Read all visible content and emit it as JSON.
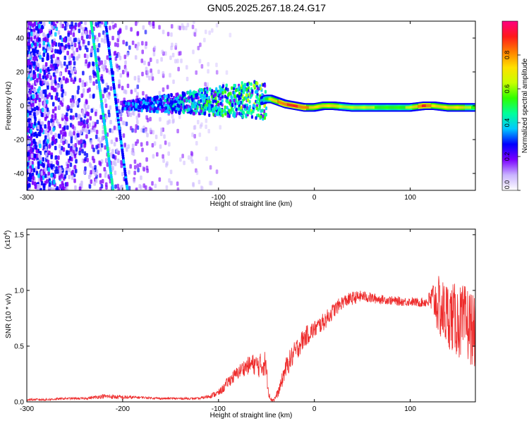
{
  "title": "GN05.2025.267.18.24.G17",
  "chart_data": [
    {
      "type": "heatmap",
      "xlabel": "Height of straight line (km)",
      "ylabel": "Frequency (Hz)",
      "xlim": [
        -300,
        168
      ],
      "ylim": [
        -50,
        50
      ],
      "xticks": [
        -300,
        -200,
        -100,
        0,
        100
      ],
      "yticks": [
        -40,
        -20,
        0,
        20,
        40
      ],
      "grid": false,
      "colorbar": {
        "label": "Normalized spectral amplitude",
        "range": [
          0,
          1
        ],
        "ticks": [
          "0.0",
          "0.2",
          "0.4",
          "0.6",
          "0.8"
        ],
        "colors": [
          "#ffffff",
          "#c9b3ff",
          "#7a00ff",
          "#0000ff",
          "#00c8ff",
          "#00ff9a",
          "#30ff00",
          "#c8ff00",
          "#ffe000",
          "#ff8000",
          "#ff1a1a",
          "#ff0080"
        ]
      },
      "tone_track": [
        {
          "x": -55,
          "y": 3,
          "value": 0.35
        },
        {
          "x": -50,
          "y": 4,
          "value": 0.5
        },
        {
          "x": -45,
          "y": 4,
          "value": 0.65
        },
        {
          "x": -40,
          "y": 3,
          "value": 0.75
        },
        {
          "x": -30,
          "y": 1,
          "value": 0.85
        },
        {
          "x": -20,
          "y": 0,
          "value": 0.9
        },
        {
          "x": -10,
          "y": -1,
          "value": 0.8
        },
        {
          "x": 0,
          "y": -1,
          "value": 0.75
        },
        {
          "x": 10,
          "y": 0,
          "value": 0.75
        },
        {
          "x": 20,
          "y": 0,
          "value": 0.7
        },
        {
          "x": 40,
          "y": -1,
          "value": 0.6
        },
        {
          "x": 60,
          "y": -1,
          "value": 0.6
        },
        {
          "x": 80,
          "y": -1,
          "value": 0.55
        },
        {
          "x": 100,
          "y": -1,
          "value": 0.6
        },
        {
          "x": 115,
          "y": 0,
          "value": 0.9
        },
        {
          "x": 125,
          "y": 0,
          "value": 0.75
        },
        {
          "x": 140,
          "y": -1,
          "value": 0.7
        },
        {
          "x": 155,
          "y": -1,
          "value": 0.7
        },
        {
          "x": 168,
          "y": -1,
          "value": 0.55
        }
      ],
      "streaks": [
        {
          "from": [
            -233,
            50
          ],
          "to": [
            -210,
            -50
          ],
          "value": 0.4
        },
        {
          "from": [
            -218,
            50
          ],
          "to": [
            -195,
            -50
          ],
          "value": 0.3
        }
      ]
    },
    {
      "type": "line",
      "xlabel": "Height of straight line (km)",
      "ylabel": "SNR (10 * v/v)",
      "yscale_label": "(x10",
      "yscale_exp": "4",
      "yscale_close": ")",
      "xlim": [
        -300,
        168
      ],
      "ylim": [
        0,
        1.55
      ],
      "xticks": [
        -300,
        -200,
        -100,
        0,
        100
      ],
      "yticks": [
        "0.0",
        "0.5",
        "1.0",
        "1.5"
      ],
      "grid": false,
      "series": [
        {
          "color": "#ee2c2c",
          "x": [
            -300,
            -280,
            -260,
            -240,
            -220,
            -200,
            -180,
            -160,
            -140,
            -120,
            -110,
            -100,
            -95,
            -90,
            -85,
            -80,
            -75,
            -70,
            -65,
            -60,
            -55,
            -52,
            -50,
            -48,
            -45,
            -42,
            -40,
            -38,
            -35,
            -32,
            -30,
            -25,
            -20,
            -15,
            -10,
            -5,
            0,
            10,
            20,
            30,
            40,
            50,
            60,
            70,
            80,
            90,
            100,
            110,
            118,
            125,
            130,
            135,
            140,
            145,
            150,
            155,
            160,
            165,
            168
          ],
          "y": [
            0.02,
            0.02,
            0.03,
            0.03,
            0.05,
            0.04,
            0.04,
            0.03,
            0.03,
            0.03,
            0.05,
            0.08,
            0.12,
            0.18,
            0.22,
            0.26,
            0.3,
            0.32,
            0.34,
            0.33,
            0.32,
            0.36,
            0.28,
            0.1,
            0.02,
            0.02,
            0.05,
            0.08,
            0.15,
            0.25,
            0.3,
            0.38,
            0.45,
            0.52,
            0.58,
            0.62,
            0.65,
            0.72,
            0.82,
            0.9,
            0.93,
            0.95,
            0.93,
            0.92,
            0.91,
            0.9,
            0.9,
            0.89,
            0.9,
            0.92,
            0.85,
            0.8,
            0.78,
            0.75,
            0.72,
            0.7,
            0.7,
            0.65,
            0.6
          ],
          "noise_amplitude": [
            0.01,
            0.01,
            0.01,
            0.01,
            0.02,
            0.02,
            0.01,
            0.01,
            0.01,
            0.01,
            0.02,
            0.03,
            0.04,
            0.05,
            0.06,
            0.06,
            0.07,
            0.08,
            0.09,
            0.1,
            0.12,
            0.12,
            0.1,
            0.05,
            0.02,
            0.02,
            0.03,
            0.04,
            0.06,
            0.08,
            0.09,
            0.1,
            0.1,
            0.1,
            0.09,
            0.09,
            0.08,
            0.08,
            0.07,
            0.06,
            0.06,
            0.05,
            0.05,
            0.04,
            0.04,
            0.04,
            0.04,
            0.04,
            0.05,
            0.2,
            0.28,
            0.3,
            0.3,
            0.32,
            0.33,
            0.35,
            0.35,
            0.33,
            0.3
          ]
        }
      ]
    }
  ]
}
